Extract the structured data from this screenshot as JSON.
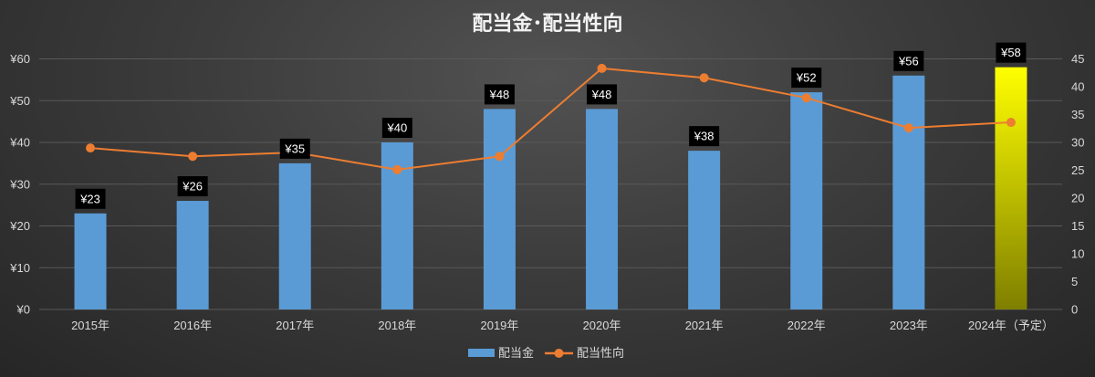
{
  "chart_data": {
    "type": "bar",
    "title": "配当金･配当性向",
    "categories": [
      "2015年",
      "2016年",
      "2017年",
      "2018年",
      "2019年",
      "2020年",
      "2021年",
      "2022年",
      "2023年",
      "2024年（予定）"
    ],
    "series": [
      {
        "name": "配当金",
        "type": "bar",
        "axis": "left",
        "values": [
          23,
          26,
          35,
          40,
          48,
          48,
          38,
          52,
          56,
          58
        ],
        "labels": [
          "¥23",
          "¥26",
          "¥35",
          "¥40",
          "¥48",
          "¥48",
          "¥38",
          "¥52",
          "¥56",
          "¥58"
        ],
        "color": "#5b9bd5",
        "highlight_last": {
          "top": "#ffff00",
          "bottom": "#7f7f00"
        }
      },
      {
        "name": "配当性向",
        "type": "line",
        "axis": "right",
        "values": [
          29.0,
          27.5,
          28.2,
          25.1,
          27.5,
          43.3,
          41.6,
          38.0,
          32.6,
          33.6
        ],
        "color": "#ed7d31"
      }
    ],
    "y_left": {
      "min": 0,
      "max": 60,
      "step": 10,
      "tick_labels": [
        "¥0",
        "¥10",
        "¥20",
        "¥30",
        "¥40",
        "¥50",
        "¥60"
      ]
    },
    "y_right": {
      "min": 0,
      "max": 45,
      "step": 5,
      "tick_labels": [
        "0",
        "5",
        "10",
        "15",
        "20",
        "25",
        "30",
        "35",
        "40",
        "45"
      ]
    },
    "grid": true,
    "legend": "bottom",
    "colors": {
      "gridline": "#595959",
      "axis_text": "#d9d9d9",
      "label_bg": "#000000"
    }
  }
}
